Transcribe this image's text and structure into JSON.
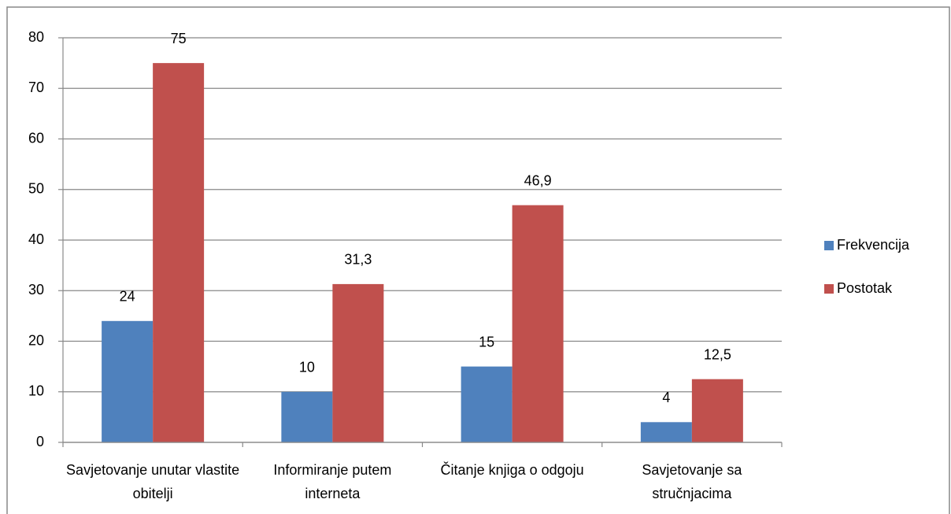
{
  "chart_data": {
    "type": "bar",
    "categories": [
      "Savjetovanje unutar vlastite obitelji",
      "Informiranje putem interneta",
      "Čitanje knjiga o odgoju",
      "Savjetovanje sa stručnjacima"
    ],
    "series": [
      {
        "name": "Frekvencija",
        "color": "#4f81bd",
        "values": [
          24,
          10,
          15,
          4
        ]
      },
      {
        "name": "Postotak",
        "color": "#c0504d",
        "values": [
          75,
          31.3,
          46.9,
          12.5
        ],
        "value_labels": [
          "75",
          "31,3",
          "46,9",
          "12,5"
        ]
      }
    ],
    "ylim": [
      0,
      80
    ],
    "yticks": [
      0,
      10,
      20,
      30,
      40,
      50,
      60,
      70,
      80
    ],
    "grid": true,
    "legend": "right"
  }
}
